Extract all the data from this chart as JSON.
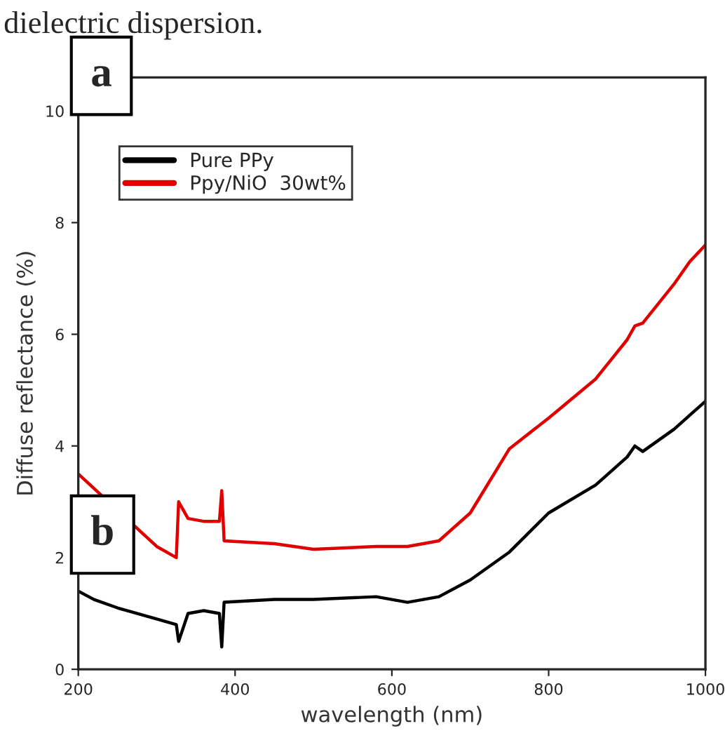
{
  "chart_data": {
    "type": "line",
    "xlabel": "wavelength (nm)",
    "ylabel": "Diffuse reflectance (%)",
    "x": [
      200,
      220,
      250,
      300,
      325,
      328,
      340,
      360,
      380,
      383,
      386,
      450,
      500,
      580,
      620,
      660,
      700,
      750,
      800,
      860,
      900,
      910,
      920,
      960,
      980,
      1000
    ],
    "series": [
      {
        "name": "Pure PPy",
        "color": "#000000",
        "values": [
          1.4,
          1.25,
          1.1,
          0.9,
          0.8,
          0.5,
          1.0,
          1.05,
          1.0,
          0.4,
          1.2,
          1.25,
          1.25,
          1.3,
          1.2,
          1.3,
          1.6,
          2.1,
          2.8,
          3.3,
          3.8,
          4.0,
          3.9,
          4.3,
          4.55,
          4.8
        ]
      },
      {
        "name": "Ppy/NiO  30wt%",
        "color": "#e00000",
        "values": [
          3.5,
          null,
          null,
          2.2,
          2.0,
          3.0,
          2.7,
          2.65,
          2.65,
          3.2,
          2.3,
          2.25,
          2.15,
          2.2,
          2.2,
          2.3,
          2.8,
          3.95,
          4.5,
          5.2,
          5.9,
          6.15,
          6.2,
          6.9,
          7.3,
          7.6
        ]
      }
    ],
    "xlim": [
      200,
      1000
    ],
    "xticks": [
      200,
      400,
      600,
      800,
      1000
    ],
    "ylim": [
      0,
      10.6
    ],
    "yticks": [
      0,
      2,
      4,
      6,
      8,
      10
    ],
    "grid": false,
    "legend": "top left",
    "line_style": "solid",
    "marker": "none",
    "annotations": [
      "dielectric dispersion.",
      "a",
      "b"
    ]
  }
}
